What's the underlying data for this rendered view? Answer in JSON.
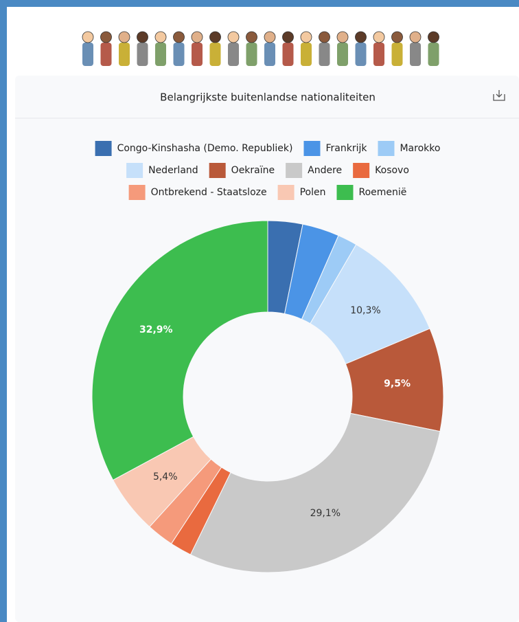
{
  "chart_data": {
    "type": "pie",
    "title": "Belangrijkste buitenlandse nationaliteiten",
    "categories": [
      "Congo-Kinshasha (Demo. Republiek)",
      "Frankrijk",
      "Marokko",
      "Nederland",
      "Oekraïne",
      "Andere",
      "Kosovo",
      "Ontbrekend - Staatsloze",
      "Polen",
      "Roemenië"
    ],
    "values": [
      3.2,
      3.4,
      1.8,
      10.3,
      9.5,
      29.1,
      2.0,
      2.5,
      5.4,
      32.9
    ],
    "value_labels": [
      null,
      null,
      null,
      "10,3%",
      "9,5%",
      "29,1%",
      null,
      null,
      "5,4%",
      "32,9%"
    ],
    "colors": [
      "#3a6fb0",
      "#4b94e6",
      "#9dcbf6",
      "#c6e0fa",
      "#b9593a",
      "#c9c9c9",
      "#e96a3f",
      "#f59a7b",
      "#f9c8b3",
      "#3dbd4f"
    ],
    "legend": "top"
  }
}
